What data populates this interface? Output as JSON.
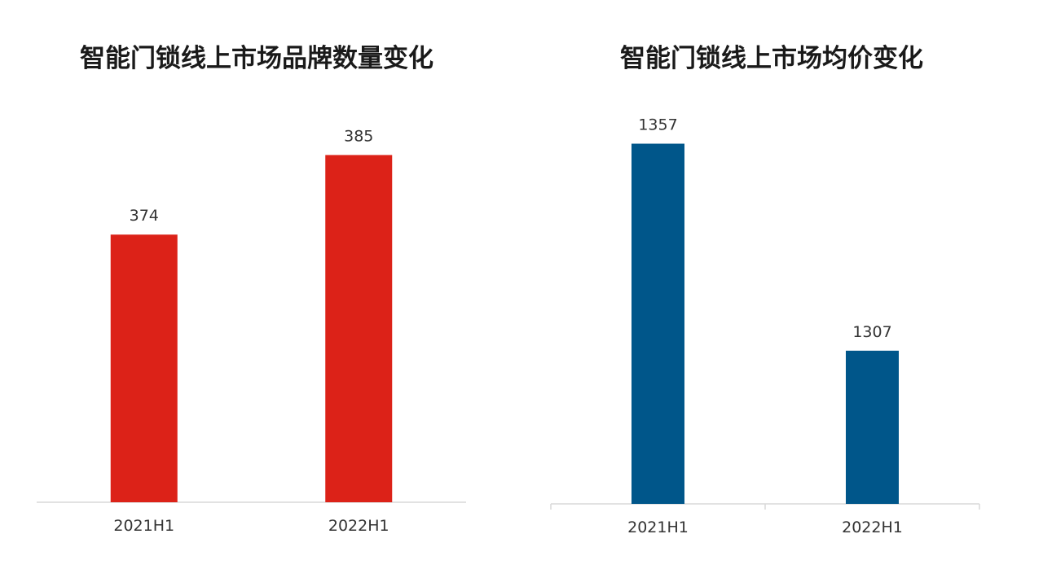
{
  "chart_data": [
    {
      "type": "bar",
      "title": "智能门锁线上市场品牌数量变化",
      "categories": [
        "2021H1",
        "2022H1"
      ],
      "values": [
        374,
        385
      ],
      "data_labels": [
        "374",
        "385"
      ],
      "color": "#dc2218",
      "ylim": [
        337,
        390
      ],
      "grid": false,
      "legend": "none"
    },
    {
      "type": "bar",
      "title": "智能门锁线上市场均价变化",
      "categories": [
        "2021H1",
        "2022H1"
      ],
      "values": [
        1357,
        1307
      ],
      "data_labels": [
        "1357",
        "1307"
      ],
      "color": "#00568a",
      "ylim": [
        1270,
        1363
      ],
      "grid": false,
      "legend": "none"
    }
  ]
}
